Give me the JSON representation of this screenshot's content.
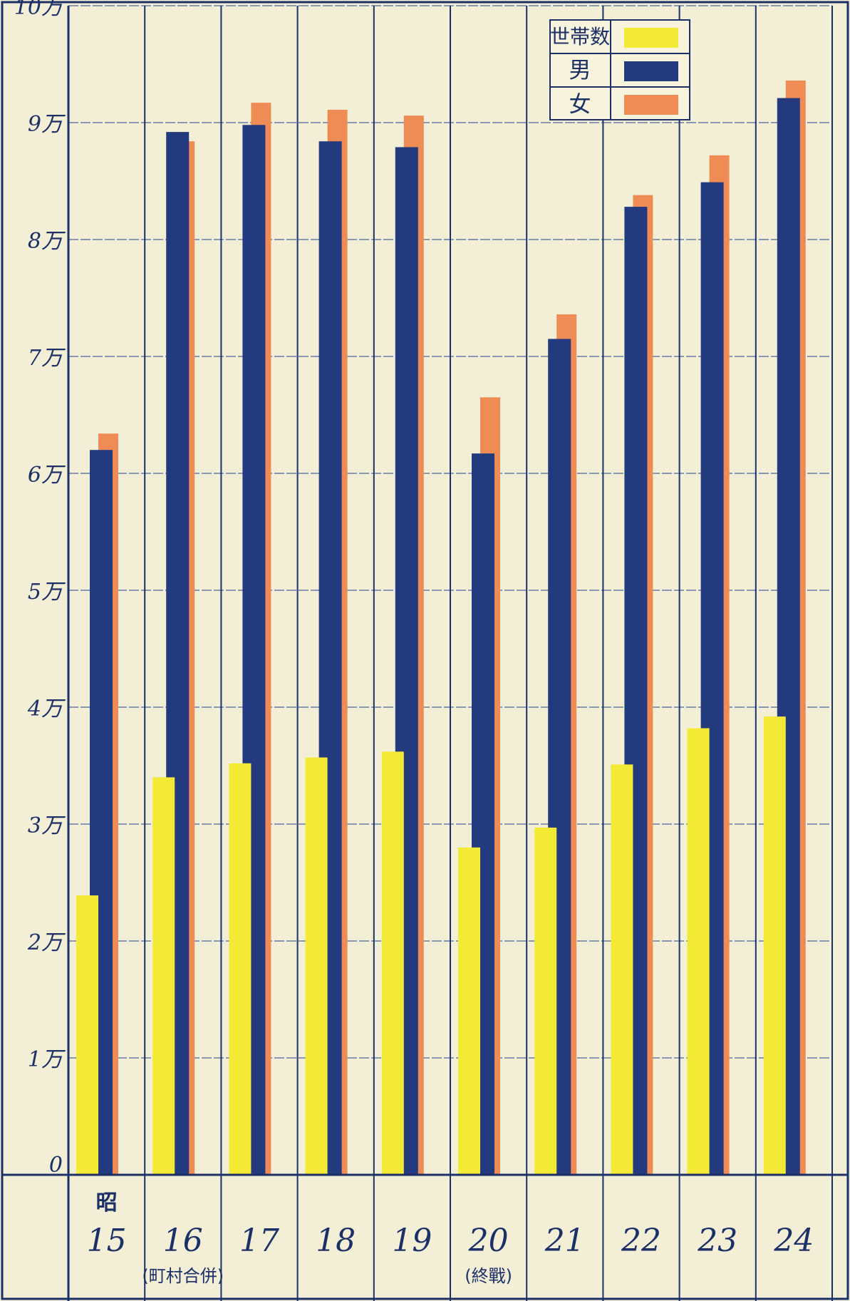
{
  "chart_data": {
    "type": "bar",
    "title": "",
    "xlabel": "",
    "ylabel": "",
    "era_label": "昭",
    "categories": [
      "15",
      "16",
      "17",
      "18",
      "19",
      "20",
      "21",
      "22",
      "23",
      "24"
    ],
    "category_notes": [
      "",
      "(町村合併)",
      "",
      "",
      "",
      "(終戰)",
      "",
      "",
      "",
      ""
    ],
    "y_ticks": [
      {
        "value": 0,
        "label": "0"
      },
      {
        "value": 10000,
        "label": "1万"
      },
      {
        "value": 20000,
        "label": "2万"
      },
      {
        "value": 30000,
        "label": "3万"
      },
      {
        "value": 40000,
        "label": "4万"
      },
      {
        "value": 50000,
        "label": "5万"
      },
      {
        "value": 60000,
        "label": "6万"
      },
      {
        "value": 70000,
        "label": "7万"
      },
      {
        "value": 80000,
        "label": "8万"
      },
      {
        "value": 90000,
        "label": "9万"
      },
      {
        "value": 100000,
        "label": "10万"
      }
    ],
    "ylim": [
      0,
      100000
    ],
    "grid": true,
    "legend_position": "top-right",
    "series": [
      {
        "name": "世帯数",
        "color": "#f2ea35",
        "values": [
          23900,
          34000,
          35200,
          35700,
          36200,
          28000,
          29700,
          35100,
          38200,
          39200
        ]
      },
      {
        "name": "男",
        "color": "#233a7e",
        "values": [
          62000,
          89200,
          89800,
          88400,
          87900,
          61700,
          71500,
          82800,
          84900,
          92100
        ]
      },
      {
        "name": "女",
        "color": "#ef8b54",
        "values": [
          63400,
          88400,
          91700,
          91100,
          90600,
          66500,
          73600,
          83800,
          87200,
          93600
        ]
      }
    ]
  }
}
